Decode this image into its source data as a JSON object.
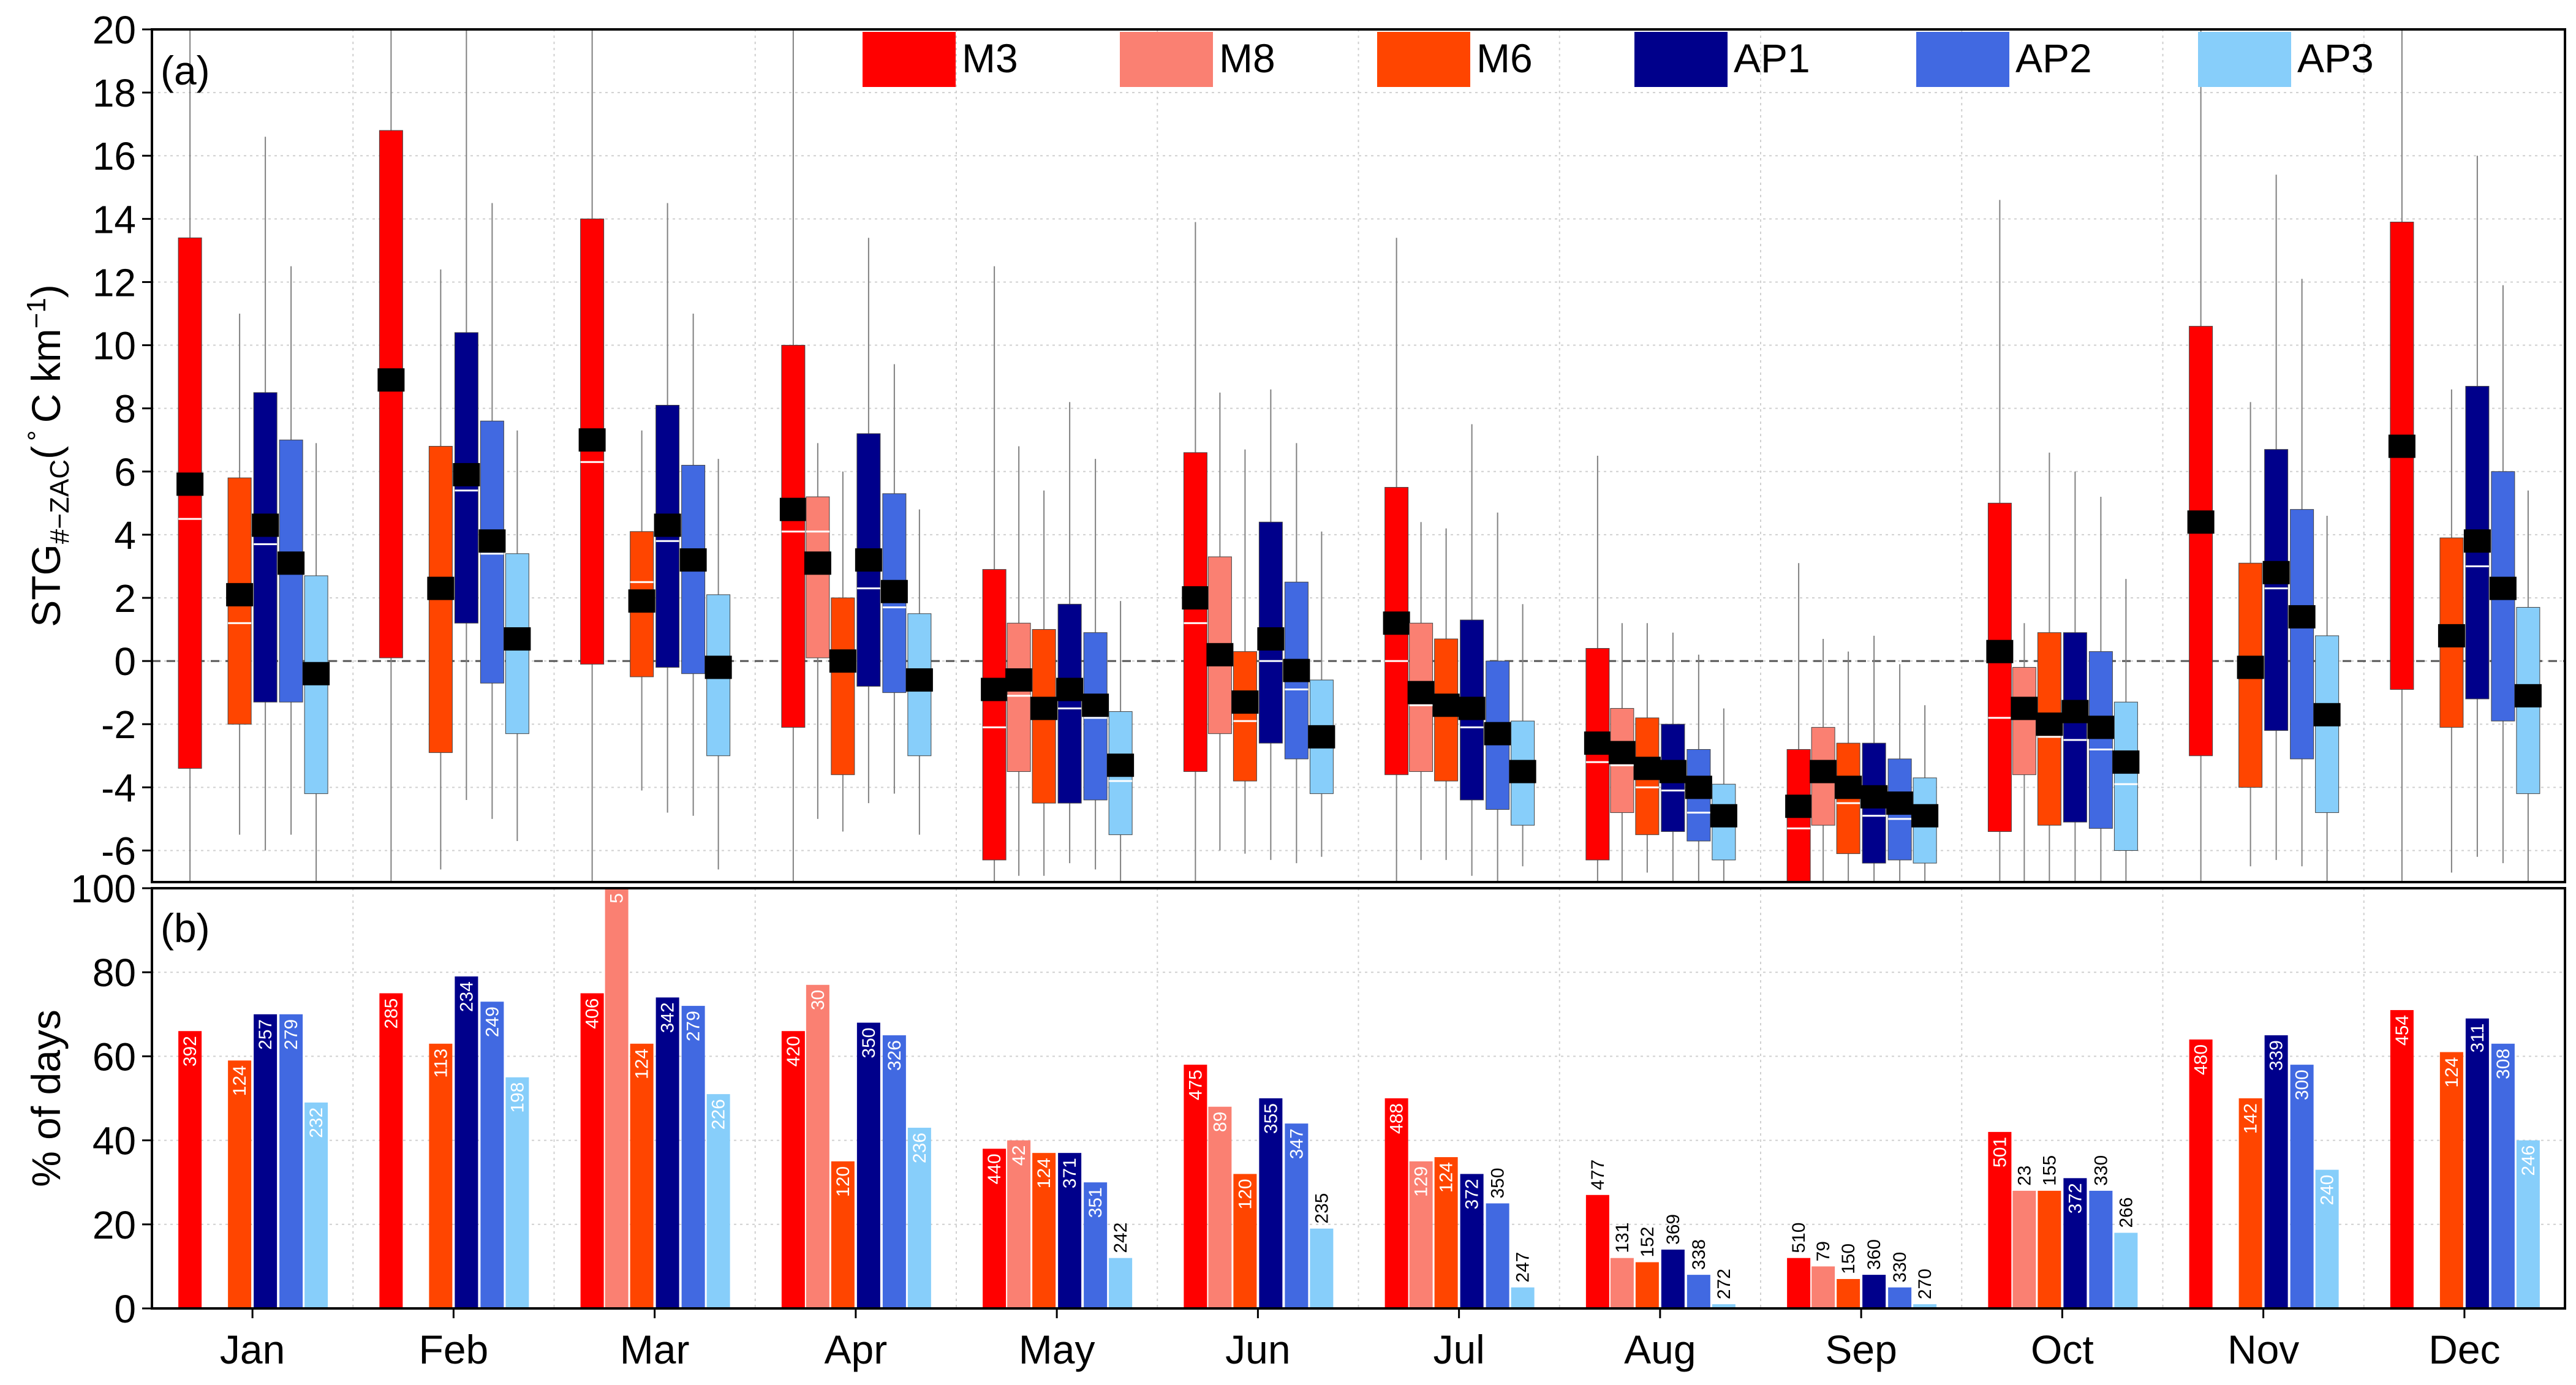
{
  "colors": {
    "M3": "#ff0000",
    "M8": "#fa8072",
    "M6": "#ff4500",
    "AP1": "#00008b",
    "AP2": "#4169e1",
    "AP3": "#87cefa",
    "median": "#ffffff",
    "mean": "#000000",
    "whisker": "#808080",
    "grid": "#d0d0d0"
  },
  "chart_data": [
    {
      "type": "box",
      "panel_label": "(a)",
      "ylabel_main": "STG",
      "ylabel_sub": "#−ZAC",
      "ylabel_unit": "(",
      "ylabel_unit_deg": "°",
      "ylabel_unit_rest": "C km",
      "ylabel_unit_exp": "−1",
      "ylabel_close": ")",
      "ylim": [
        -7,
        20
      ],
      "yticks": [
        -6,
        -4,
        -2,
        0,
        2,
        4,
        6,
        8,
        10,
        12,
        14,
        16,
        18,
        20
      ],
      "ytick_labels": [
        "-6",
        "-4",
        "-2",
        "0",
        "2",
        "4",
        "6",
        "8",
        "10",
        "12",
        "14",
        "16",
        "18",
        "20"
      ],
      "zero_line": true,
      "grid": true,
      "legend_position": "top",
      "legend": [
        "M3",
        "M8",
        "M6",
        "AP1",
        "AP2",
        "AP3"
      ],
      "months": [
        "Jan",
        "Feb",
        "Mar",
        "Apr",
        "May",
        "Jun",
        "Jul",
        "Aug",
        "Sep",
        "Oct",
        "Nov",
        "Dec"
      ],
      "series": [
        {
          "name": "M3",
          "boxes": [
            {
              "lo": -7,
              "q1": -3.4,
              "med": 4.5,
              "q3": 13.4,
              "hi": 20,
              "mean": 5.6
            },
            {
              "lo": -7,
              "q1": 0.1,
              "med": 8.8,
              "q3": 16.8,
              "hi": 20,
              "mean": 8.9
            },
            {
              "lo": -7,
              "q1": -0.1,
              "med": 6.3,
              "q3": 14,
              "hi": 20,
              "mean": 7
            },
            {
              "lo": -7,
              "q1": -2.1,
              "med": 4.1,
              "q3": 10,
              "hi": 20,
              "mean": 4.8
            },
            {
              "lo": -7,
              "q1": -6.3,
              "med": -2.1,
              "q3": 2.9,
              "hi": 12.5,
              "mean": -0.9
            },
            {
              "lo": -7,
              "q1": -3.5,
              "med": 1.2,
              "q3": 6.6,
              "hi": 13.9,
              "mean": 2
            },
            {
              "lo": -7,
              "q1": -3.6,
              "med": 0,
              "q3": 5.5,
              "hi": 13.4,
              "mean": 1.2
            },
            {
              "lo": -7,
              "q1": -6.3,
              "med": -3.2,
              "q3": 0.4,
              "hi": 6.5,
              "mean": -2.6
            },
            {
              "lo": -7,
              "q1": -7,
              "med": -5.3,
              "q3": -2.8,
              "hi": 3.1,
              "mean": -4.6
            },
            {
              "lo": -7,
              "q1": -5.4,
              "med": -1.8,
              "q3": 5,
              "hi": 14.6,
              "mean": 0.3
            },
            {
              "lo": -7,
              "q1": -3,
              "med": 4.3,
              "q3": 10.6,
              "hi": 20,
              "mean": 4.4
            },
            {
              "lo": -7,
              "q1": -0.9,
              "med": 6.5,
              "q3": 13.9,
              "hi": 20,
              "mean": 6.8
            }
          ]
        },
        {
          "name": "M8",
          "boxes": [
            null,
            null,
            null,
            {
              "lo": -5,
              "q1": 0.1,
              "med": 4.1,
              "q3": 5.2,
              "hi": 6.9,
              "mean": 3.1
            },
            {
              "lo": -6.8,
              "q1": -3.5,
              "med": -1.1,
              "q3": 1.2,
              "hi": 6.8,
              "mean": -0.6
            },
            {
              "lo": -6,
              "q1": -2.3,
              "med": -0.1,
              "q3": 3.3,
              "hi": 8.5,
              "mean": 0.2
            },
            {
              "lo": -6.3,
              "q1": -3.5,
              "med": -1.4,
              "q3": 1.2,
              "hi": 4.4,
              "mean": -1
            },
            {
              "lo": -7,
              "q1": -4.8,
              "med": -3.3,
              "q3": -1.5,
              "hi": 1.2,
              "mean": -2.9
            },
            {
              "lo": -7,
              "q1": -5.2,
              "med": -3.6,
              "q3": -2.1,
              "hi": 0.7,
              "mean": -3.5
            },
            {
              "lo": -7,
              "q1": -3.6,
              "med": -1.7,
              "q3": -0.2,
              "hi": 1.2,
              "mean": -1.5
            },
            null,
            null
          ]
        },
        {
          "name": "M6",
          "boxes": [
            {
              "lo": -5.5,
              "q1": -2,
              "med": 1.2,
              "q3": 5.8,
              "hi": 11,
              "mean": 2.1
            },
            {
              "lo": -6.6,
              "q1": -2.9,
              "med": 2,
              "q3": 6.8,
              "hi": 12.4,
              "mean": 2.3
            },
            {
              "lo": -4.1,
              "q1": -0.5,
              "med": 2.5,
              "q3": 4.1,
              "hi": 7.3,
              "mean": 1.9
            },
            {
              "lo": -5.4,
              "q1": -3.6,
              "med": -0.1,
              "q3": 2,
              "hi": 6,
              "mean": 0
            },
            {
              "lo": -6.8,
              "q1": -4.5,
              "med": -1.6,
              "q3": 1,
              "hi": 5.4,
              "mean": -1.5
            },
            {
              "lo": -6.1,
              "q1": -3.8,
              "med": -1.9,
              "q3": 0.3,
              "hi": 6.7,
              "mean": -1.3
            },
            {
              "lo": -6.3,
              "q1": -3.8,
              "med": -1.2,
              "q3": 0.7,
              "hi": 4.2,
              "mean": -1.4
            },
            {
              "lo": -6.7,
              "q1": -5.5,
              "med": -4,
              "q3": -1.8,
              "hi": 1.2,
              "mean": -3.4
            },
            {
              "lo": -7,
              "q1": -6.1,
              "med": -4.5,
              "q3": -2.6,
              "hi": 0.3,
              "mean": -4
            },
            {
              "lo": -7,
              "q1": -5.2,
              "med": -2.4,
              "q3": 0.9,
              "hi": 6.6,
              "mean": -2
            },
            {
              "lo": -6.5,
              "q1": -4,
              "med": -0.2,
              "q3": 3.1,
              "hi": 8.2,
              "mean": -0.2
            },
            {
              "lo": -6.7,
              "q1": -2.1,
              "med": 0.9,
              "q3": 3.9,
              "hi": 8.6,
              "mean": 0.8
            }
          ]
        },
        {
          "name": "AP1",
          "boxes": [
            {
              "lo": -6,
              "q1": -1.3,
              "med": 3.7,
              "q3": 8.5,
              "hi": 16.6,
              "mean": 4.3
            },
            {
              "lo": -4.4,
              "q1": 1.2,
              "med": 5.4,
              "q3": 10.4,
              "hi": 20,
              "mean": 5.9
            },
            {
              "lo": -4.8,
              "q1": -0.2,
              "med": 3.8,
              "q3": 8.1,
              "hi": 14.5,
              "mean": 4.3
            },
            {
              "lo": -4.5,
              "q1": -0.8,
              "med": 2.3,
              "q3": 7.2,
              "hi": 13.4,
              "mean": 3.2
            },
            {
              "lo": -6.4,
              "q1": -4.5,
              "med": -1.5,
              "q3": 1.8,
              "hi": 8.2,
              "mean": -0.9
            },
            {
              "lo": -6.3,
              "q1": -2.6,
              "med": 0,
              "q3": 4.4,
              "hi": 8.6,
              "mean": 0.7
            },
            {
              "lo": -6.8,
              "q1": -4.4,
              "med": -2.1,
              "q3": 1.3,
              "hi": 7.5,
              "mean": -1.5
            },
            {
              "lo": -7,
              "q1": -5.4,
              "med": -4.1,
              "q3": -2,
              "hi": 0.9,
              "mean": -3.5
            },
            {
              "lo": -7,
              "q1": -6.4,
              "med": -4.9,
              "q3": -2.6,
              "hi": 0.8,
              "mean": -4.3
            },
            {
              "lo": -7,
              "q1": -5.1,
              "med": -2.5,
              "q3": 0.9,
              "hi": 6,
              "mean": -1.6
            },
            {
              "lo": -6.3,
              "q1": -2.2,
              "med": 2.3,
              "q3": 6.7,
              "hi": 15.4,
              "mean": 2.8
            },
            {
              "lo": -6.2,
              "q1": -1.2,
              "med": 3,
              "q3": 8.7,
              "hi": 16,
              "mean": 3.8
            }
          ]
        },
        {
          "name": "AP2",
          "boxes": [
            {
              "lo": -5.5,
              "q1": -1.3,
              "med": 2.9,
              "q3": 7,
              "hi": 12.5,
              "mean": 3.1
            },
            {
              "lo": -5,
              "q1": -0.7,
              "med": 3.4,
              "q3": 7.6,
              "hi": 14.5,
              "mean": 3.8
            },
            {
              "lo": -4.9,
              "q1": -0.4,
              "med": 3,
              "q3": 6.2,
              "hi": 11,
              "mean": 3.2
            },
            {
              "lo": -4.2,
              "q1": -1,
              "med": 1.7,
              "q3": 5.3,
              "hi": 9.4,
              "mean": 2.2
            },
            {
              "lo": -6.6,
              "q1": -4.4,
              "med": -1.8,
              "q3": 0.9,
              "hi": 6.4,
              "mean": -1.4
            },
            {
              "lo": -6.4,
              "q1": -3.1,
              "med": -0.9,
              "q3": 2.5,
              "hi": 6.9,
              "mean": -0.3
            },
            {
              "lo": -7,
              "q1": -4.7,
              "med": -2.6,
              "q3": 0,
              "hi": 4.7,
              "mean": -2.3
            },
            {
              "lo": -7,
              "q1": -5.7,
              "med": -4.8,
              "q3": -2.8,
              "hi": 0.2,
              "mean": -4
            },
            {
              "lo": -7,
              "q1": -6.3,
              "med": -5,
              "q3": -3.1,
              "hi": -0.1,
              "mean": -4.5
            },
            {
              "lo": -7,
              "q1": -5.3,
              "med": -2.8,
              "q3": 0.3,
              "hi": 5.2,
              "mean": -2.1
            },
            {
              "lo": -6.5,
              "q1": -3.1,
              "med": 1.2,
              "q3": 4.8,
              "hi": 12.1,
              "mean": 1.4
            },
            {
              "lo": -6.4,
              "q1": -1.9,
              "med": 2,
              "q3": 6,
              "hi": 11.9,
              "mean": 2.3
            }
          ]
        },
        {
          "name": "AP3",
          "boxes": [
            {
              "lo": -7,
              "q1": -4.2,
              "med": -0.6,
              "q3": 2.7,
              "hi": 6.9,
              "mean": -0.4
            },
            {
              "lo": -5.7,
              "q1": -2.3,
              "med": 0.6,
              "q3": 3.4,
              "hi": 7.3,
              "mean": 0.7
            },
            {
              "lo": -6.6,
              "q1": -3,
              "med": -0.4,
              "q3": 2.1,
              "hi": 6.4,
              "mean": -0.2
            },
            {
              "lo": -5.5,
              "q1": -3,
              "med": -0.4,
              "q3": 1.5,
              "hi": 4.8,
              "mean": -0.6
            },
            {
              "lo": -7,
              "q1": -5.5,
              "med": -3.8,
              "q3": -1.6,
              "hi": 1.9,
              "mean": -3.3
            },
            {
              "lo": -6.2,
              "q1": -4.2,
              "med": -2.3,
              "q3": -0.6,
              "hi": 4.1,
              "mean": -2.4
            },
            {
              "lo": -6.5,
              "q1": -5.2,
              "med": -3.7,
              "q3": -1.9,
              "hi": 1.8,
              "mean": -3.5
            },
            {
              "lo": -7,
              "q1": -6.3,
              "med": -4.8,
              "q3": -3.9,
              "hi": -1.5,
              "mean": -4.9
            },
            {
              "lo": -7,
              "q1": -6.4,
              "med": -5.2,
              "q3": -3.7,
              "hi": -1.4,
              "mean": -4.9
            },
            {
              "lo": -7,
              "q1": -6,
              "med": -3.9,
              "q3": -1.3,
              "hi": 2.6,
              "mean": -3.2
            },
            {
              "lo": -7,
              "q1": -4.8,
              "med": -1.5,
              "q3": 0.8,
              "hi": 4.6,
              "mean": -1.7
            },
            {
              "lo": -7,
              "q1": -4.2,
              "med": -0.9,
              "q3": 1.7,
              "hi": 5.4,
              "mean": -1.1
            }
          ]
        }
      ]
    },
    {
      "type": "bar",
      "panel_label": "(b)",
      "ylabel": "% of days",
      "ylim": [
        0,
        100
      ],
      "yticks": [
        0,
        20,
        40,
        60,
        80,
        100
      ],
      "ytick_labels": [
        "0",
        "20",
        "40",
        "60",
        "80",
        "100"
      ],
      "grid": true,
      "categories": [
        "Jan",
        "Feb",
        "Mar",
        "Apr",
        "May",
        "Jun",
        "Jul",
        "Aug",
        "Sep",
        "Oct",
        "Nov",
        "Dec"
      ],
      "series": [
        {
          "name": "M3",
          "values": [
            66,
            75,
            75,
            66,
            38,
            58,
            50,
            27,
            12,
            42,
            64,
            71
          ],
          "labels": [
            "392",
            "285",
            "406",
            "420",
            "440",
            "475",
            "488",
            "477",
            "510",
            "501",
            "480",
            "454"
          ]
        },
        {
          "name": "M8",
          "values": [
            null,
            null,
            100,
            77,
            40,
            48,
            35,
            12,
            10,
            28,
            null,
            null
          ],
          "labels": [
            "",
            "",
            "5",
            "30",
            "42",
            "89",
            "129",
            "131",
            "79",
            "23",
            "",
            ""
          ]
        },
        {
          "name": "M6",
          "values": [
            59,
            63,
            63,
            35,
            37,
            32,
            36,
            11,
            7,
            28,
            50,
            61
          ],
          "labels": [
            "124",
            "113",
            "124",
            "120",
            "124",
            "120",
            "124",
            "152",
            "150",
            "155",
            "142",
            "124"
          ]
        },
        {
          "name": "AP1",
          "values": [
            70,
            79,
            74,
            68,
            37,
            50,
            32,
            14,
            8,
            31,
            65,
            69
          ],
          "labels": [
            "257",
            "234",
            "342",
            "350",
            "371",
            "355",
            "372",
            "369",
            "360",
            "372",
            "339",
            "311"
          ]
        },
        {
          "name": "AP2",
          "values": [
            70,
            73,
            72,
            65,
            30,
            44,
            25,
            8,
            5,
            28,
            58,
            63
          ],
          "labels": [
            "279",
            "249",
            "279",
            "326",
            "351",
            "347",
            "350",
            "338",
            "330",
            "330",
            "300",
            "308"
          ]
        },
        {
          "name": "AP3",
          "values": [
            49,
            55,
            51,
            43,
            12,
            19,
            5,
            1,
            1,
            18,
            33,
            40
          ],
          "labels": [
            "232",
            "198",
            "226",
            "236",
            "242",
            "235",
            "247",
            "272",
            "270",
            "266",
            "240",
            "246"
          ]
        }
      ]
    }
  ]
}
